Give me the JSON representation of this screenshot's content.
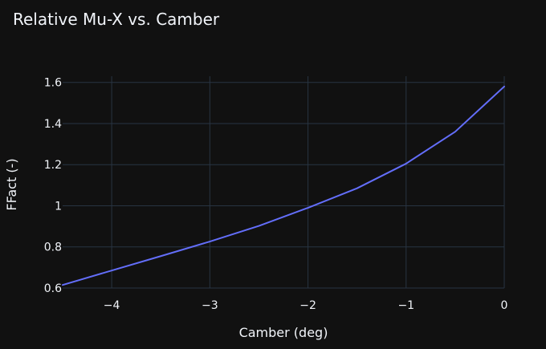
{
  "chart_data": {
    "type": "line",
    "title": "Relative Mu-X vs. Camber",
    "xlabel": "Camber (deg)",
    "ylabel": "FFact (-)",
    "xlim": [
      -4.5,
      0
    ],
    "ylim": [
      0.6,
      1.63
    ],
    "x_ticks": [
      -4,
      -3,
      -2,
      -1,
      0
    ],
    "x_tick_labels": [
      "−4",
      "−3",
      "−2",
      "−1",
      "0"
    ],
    "y_ticks": [
      0.6,
      0.8,
      1.0,
      1.2,
      1.4,
      1.6
    ],
    "y_tick_labels": [
      "0.6",
      "0.8",
      "1",
      "1.2",
      "1.4",
      "1.6"
    ],
    "grid": true,
    "series": [
      {
        "color": "#636efa",
        "x": [
          -4.5,
          -4.0,
          -3.5,
          -3.0,
          -2.5,
          -2.0,
          -1.5,
          -1.0,
          -0.5,
          0.0
        ],
        "y": [
          0.615,
          0.685,
          0.755,
          0.826,
          0.902,
          0.99,
          1.085,
          1.205,
          1.36,
          1.58
        ]
      }
    ],
    "colors": {
      "background": "#111111",
      "grid": "#283442",
      "text": "#f2f5fa"
    }
  }
}
